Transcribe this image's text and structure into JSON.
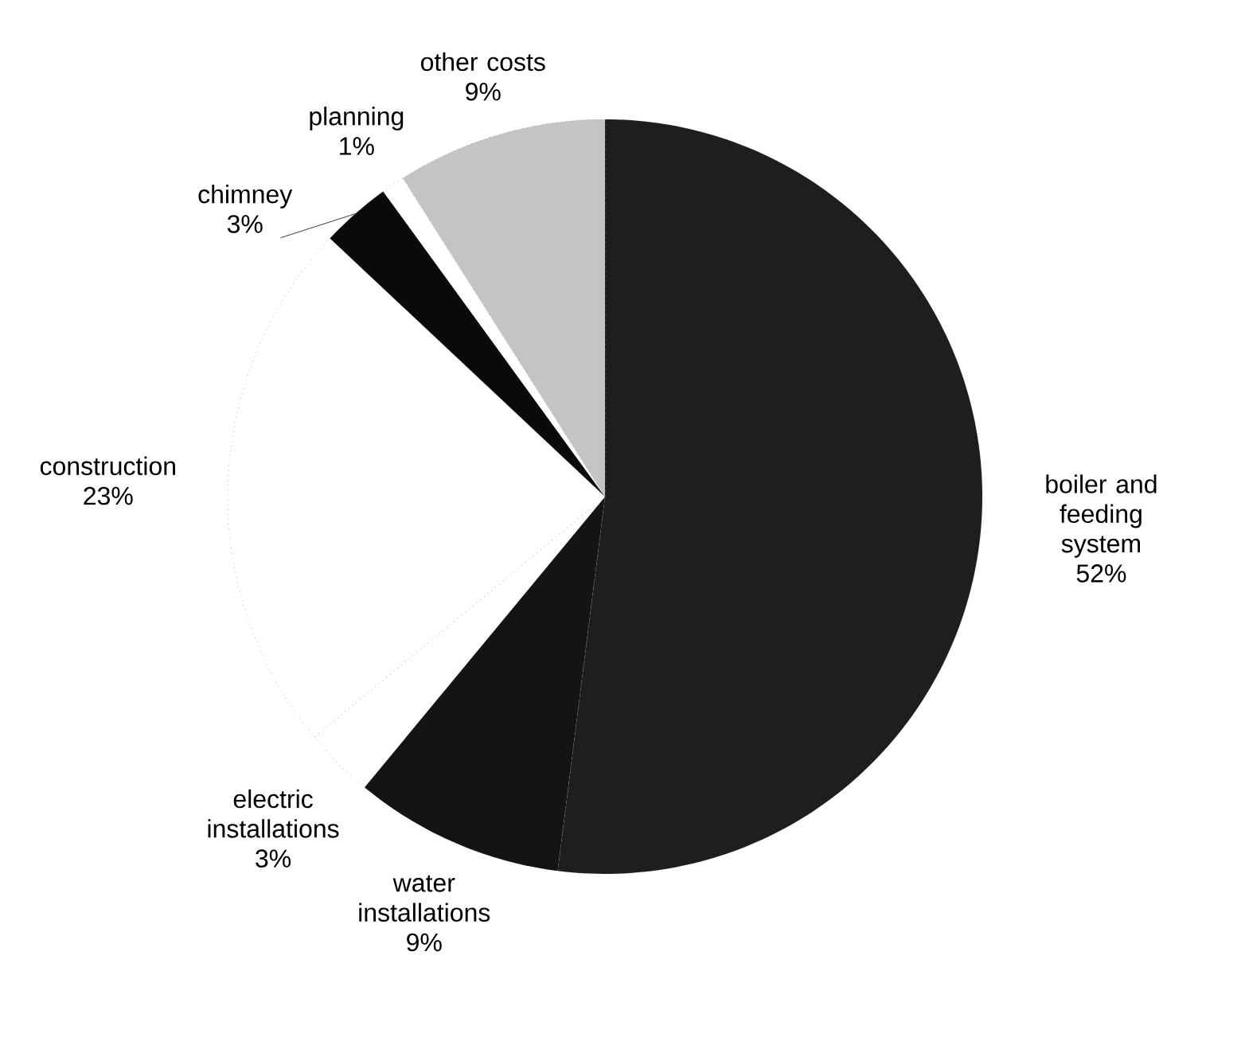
{
  "chart_data": {
    "type": "pie",
    "categories": [
      "boiler and feeding system",
      "water installations",
      "electric installations",
      "construction",
      "chimney",
      "planning",
      "other costs"
    ],
    "values": [
      52,
      9,
      3,
      23,
      3,
      1,
      9
    ],
    "value_labels": [
      "52%",
      "9%",
      "3%",
      "23%",
      "3%",
      "1%",
      "9%"
    ],
    "colors": [
      "#1e1e1e",
      "#141414",
      "#ffffff",
      "#ffffff",
      "#0a0a0a",
      "#ffffff",
      "#c4c4c4"
    ]
  }
}
